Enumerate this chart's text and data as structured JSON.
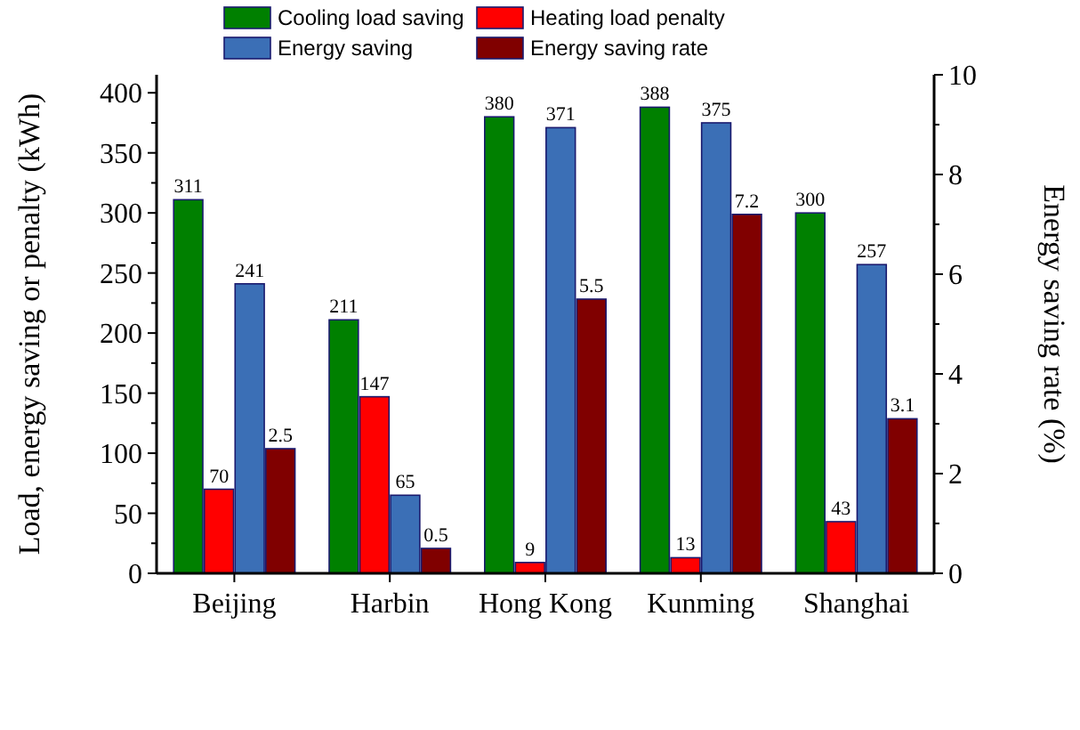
{
  "chart_data": {
    "type": "bar",
    "xlabel": null,
    "ylabel": "Load, energy saving or penalty (kWh)",
    "y2label": "Energy saving rate (%)",
    "categories": [
      "Beijing",
      "Harbin",
      "Hong Kong",
      "Kunming",
      "Shanghai"
    ],
    "series": [
      {
        "name": "Cooling load saving",
        "color": "#008000",
        "values": [
          311,
          211,
          380,
          388,
          300
        ]
      },
      {
        "name": "Heating load penalty",
        "color": "#ff0000",
        "values": [
          70,
          147,
          9,
          13,
          43
        ]
      },
      {
        "name": "Energy saving",
        "color": "#3b6fb6",
        "values": [
          241,
          65,
          371,
          375,
          257
        ]
      },
      {
        "name": "Energy saving rate",
        "color": "#800000",
        "values": [
          2.5,
          0.5,
          5.5,
          7.2,
          3.1
        ],
        "axis": "y2"
      }
    ],
    "ylim": [
      0,
      415
    ],
    "yticks": [
      0,
      50,
      100,
      150,
      200,
      250,
      300,
      350,
      400
    ],
    "y2lim": [
      0,
      10
    ],
    "y2ticks": [
      0,
      2,
      4,
      6,
      8,
      10
    ],
    "data_labels": true,
    "legend": "top"
  }
}
